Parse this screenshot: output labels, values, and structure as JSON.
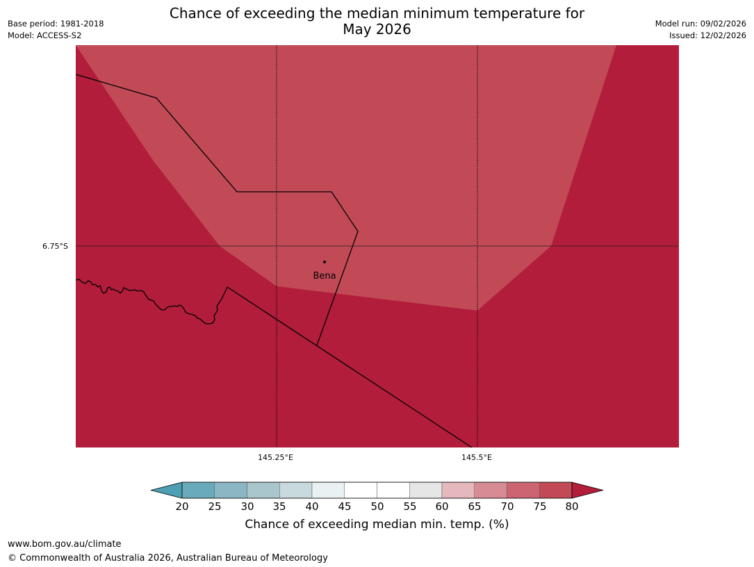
{
  "header": {
    "title_line1": "Chance of exceeding the median minimum temperature for",
    "title_line2": "May 2026",
    "base_period": "Base period: 1981-2018",
    "model": "Model: ACCESS-S2",
    "model_run": "Model run: 09/02/2026",
    "issued": "Issued: 12/02/2026"
  },
  "map": {
    "lat_label": "6.75°S",
    "lon_labels": [
      "145.25°E",
      "145.5°E"
    ],
    "place_label": "Bena",
    "colors": {
      "band_75_80": "#c14a56",
      "band_above_80": "#b11d3a",
      "boundary": "#000000"
    }
  },
  "colorbar": {
    "ticks": [
      "20",
      "25",
      "30",
      "35",
      "40",
      "45",
      "50",
      "55",
      "60",
      "65",
      "70",
      "75",
      "80"
    ],
    "colors": {
      "below_20": "#4da0b3",
      "bands": [
        "#6aabbb",
        "#8bb6c4",
        "#a9c6cc",
        "#c8dade",
        "#eaf1f3",
        "#ffffff",
        "#ffffff",
        "#e6e6e6",
        "#e4b8bd",
        "#d68b95",
        "#cc6571",
        "#c14a56"
      ],
      "above_80": "#b11d3a"
    },
    "title": "Chance of exceeding median min. temp. (%)"
  },
  "footer": {
    "url": "www.bom.gov.au/climate",
    "copyright": "© Commonwealth of Australia 2026, Australian Bureau of Meteorology"
  }
}
